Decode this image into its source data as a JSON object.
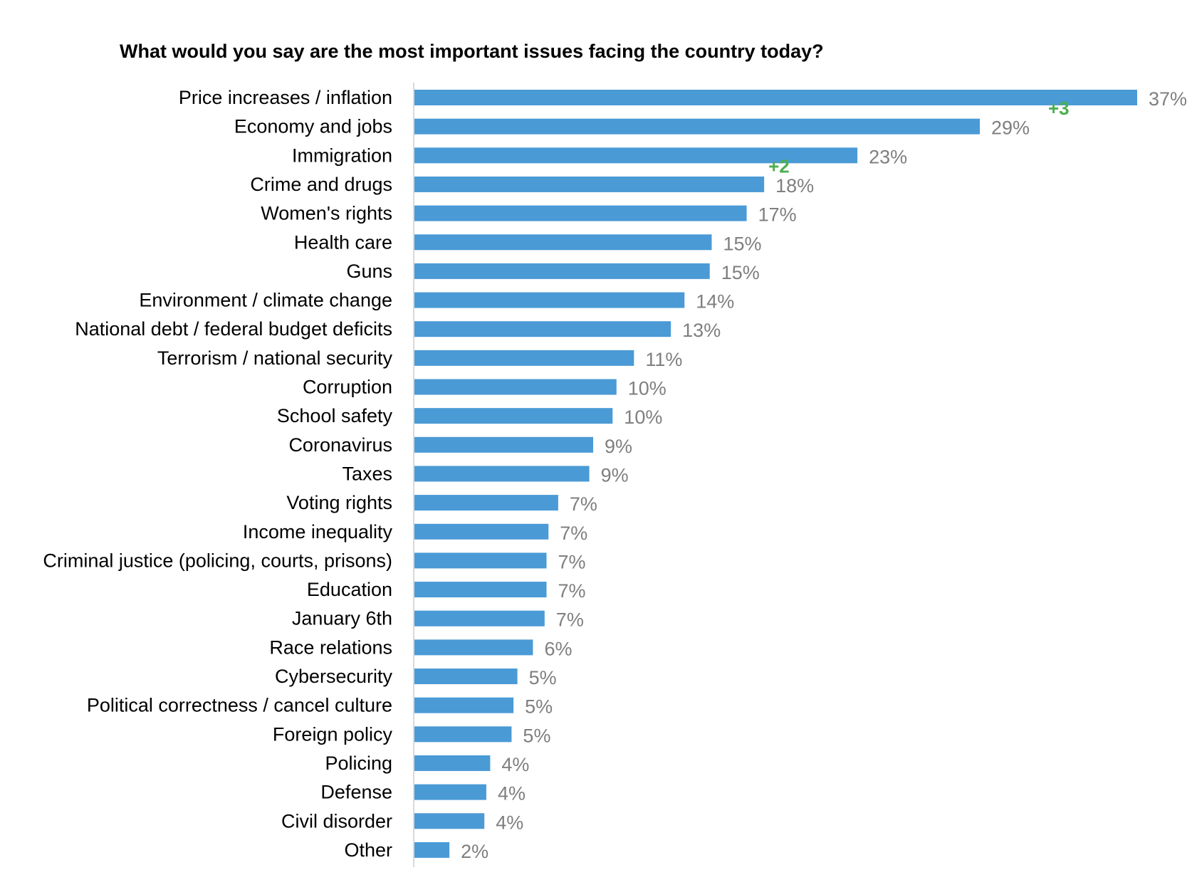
{
  "chart_data": {
    "type": "bar",
    "orientation": "horizontal",
    "title": "What would you say are the most important issues facing the country today?",
    "categories": [
      "Price increases / inflation",
      "Economy and jobs",
      "Immigration",
      "Crime and drugs",
      "Women's rights",
      "Health care",
      "Guns",
      "Environment / climate change",
      "National debt / federal budget deficits",
      "Terrorism / national security",
      "Corruption",
      "School safety",
      "Coronavirus",
      "Taxes",
      "Voting rights",
      "Income inequality",
      "Criminal justice (policing, courts, prisons)",
      "Education",
      "January 6th",
      "Race relations",
      "Cybersecurity",
      "Political correctness / cancel culture",
      "Foreign policy",
      "Policing",
      "Defense",
      "Civil disorder",
      "Other"
    ],
    "values": [
      37.2,
      29.1,
      22.8,
      18.0,
      17.1,
      15.3,
      15.2,
      13.9,
      13.2,
      11.3,
      10.4,
      10.2,
      9.2,
      9.0,
      7.4,
      6.9,
      6.8,
      6.8,
      6.7,
      6.1,
      5.3,
      5.1,
      5.0,
      3.9,
      3.7,
      3.6,
      1.8
    ],
    "value_labels": [
      "37%",
      "29%",
      "23%",
      "18%",
      "17%",
      "15%",
      "15%",
      "14%",
      "13%",
      "11%",
      "10%",
      "10%",
      "9%",
      "9%",
      "7%",
      "7%",
      "7%",
      "7%",
      "7%",
      "6%",
      "5%",
      "5%",
      "5%",
      "4%",
      "4%",
      "4%",
      "2%"
    ],
    "annotations": [
      {
        "category": "Price increases / inflation",
        "text": "+3"
      },
      {
        "category": "Immigration",
        "text": "+2"
      }
    ],
    "xlim": [
      0,
      40
    ],
    "grid": false,
    "legend": "none",
    "colors": {
      "bar": "#4a9ad6",
      "value_label": "#7f7f7f",
      "annotation": "#4caf50",
      "axis": "#d9d9d9"
    }
  }
}
